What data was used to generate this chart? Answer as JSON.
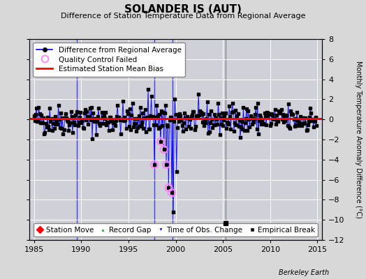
{
  "title": "SOLANDER IS (AUT)",
  "subtitle": "Difference of Station Temperature Data from Regional Average",
  "ylabel_right": "Monthly Temperature Anomaly Difference (°C)",
  "xlim": [
    1984.5,
    2015.5
  ],
  "ylim": [
    -12,
    8
  ],
  "yticks": [
    -12,
    -10,
    -8,
    -6,
    -4,
    -2,
    0,
    2,
    4,
    6,
    8
  ],
  "xticks": [
    1985,
    1990,
    1995,
    2000,
    2005,
    2010,
    2015
  ],
  "bias_value": 0.1,
  "vertical_lines_blue": [
    1989.5,
    1997.75,
    1999.67
  ],
  "vertical_line_gray": 2005.25,
  "empirical_break_x": 2005.25,
  "empirical_break_y": -10.3,
  "qc_failed_times": [
    1997.75,
    1998.42,
    1998.75,
    1999.0,
    1999.25,
    1999.58
  ],
  "bg_color": "#d8d8d8",
  "plot_bg_color": "#d0d0d8",
  "grid_color": "#ffffff",
  "line_color": "#0000ff",
  "dot_color": "#000000",
  "qc_color": "#ff80ff",
  "bias_color": "#ff0000",
  "seed": 42
}
